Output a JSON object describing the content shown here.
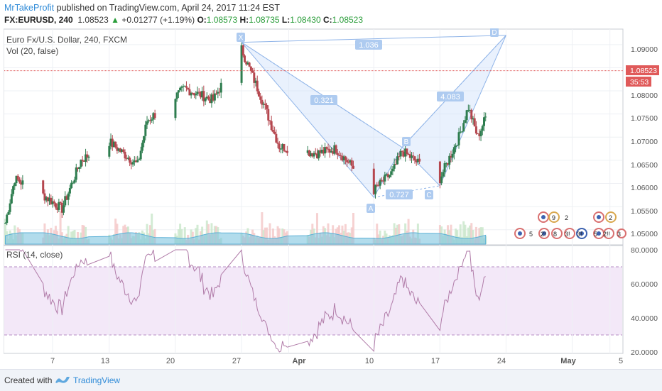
{
  "header": {
    "author": "MrTakeProfit",
    "published": " published on TradingView.com, April 24, 2017 11:24 EST",
    "symbol": "FX:EURUSD, 240",
    "last": "1.08523",
    "change": "+0.01277 (+1.19%)",
    "o_label": "O:",
    "o_value": "1.08573",
    "h_label": "H:",
    "h_value": "1.08735",
    "l_label": "L:",
    "l_value": "1.08430",
    "c_label": "C:",
    "c_value": "1.08523"
  },
  "legend": {
    "title": "Euro Fx/U.S. Dollar, 240, FXCM",
    "vol": "Vol (20, false)",
    "rsi": "RSI (14, close)"
  },
  "price_axis": {
    "ticks": [
      "1.09000",
      "1.08500",
      "1.08000",
      "1.07500",
      "1.07000",
      "1.06500",
      "1.06000",
      "1.05500",
      "1.05000"
    ],
    "last_price_label": "1.08523",
    "countdown_label": "35:53"
  },
  "rsi_axis": {
    "ticks": [
      "80.0000",
      "60.0000",
      "40.0000",
      "20.0000"
    ]
  },
  "time_axis": {
    "ticks": [
      "7",
      "13",
      "20",
      "27",
      "Apr",
      "10",
      "17",
      "24",
      "May",
      "5"
    ]
  },
  "pattern_labels": {
    "X": "X",
    "A": "A",
    "B": "B",
    "C": "C",
    "D": "D",
    "xb": "0.321",
    "ac": "0.727",
    "xd": "1.036",
    "bd": "4.083"
  },
  "events": {
    "e1": "5",
    "e2": "2!",
    "e3": "9",
    "e4": "2",
    "e5": "8",
    "e6": "3!",
    "e7": "3!",
    "e8": "5",
    "e9": "2!!",
    "e10": "2",
    "e11": "3"
  },
  "footer": {
    "created": "Created with",
    "brand": "TradingView"
  },
  "colors": {
    "up": "#2e7d4f",
    "down": "#b5474f",
    "pattern": "#8fb4e8",
    "rsi": "#b07ba8",
    "last_price": "#e05a5a"
  },
  "chart_data": {
    "type": "candlestick",
    "symbol": "FX:EURUSD",
    "timeframe": "240",
    "ohlc_last": {
      "open": 1.08573,
      "high": 1.08735,
      "low": 1.0843,
      "close": 1.08523
    },
    "price_range": [
      1.0475,
      1.0935
    ],
    "rsi_range": [
      20,
      80
    ],
    "harmonic_pattern": {
      "points": [
        {
          "name": "X",
          "date": "Mar 27",
          "price": 1.0905
        },
        {
          "name": "A",
          "date": "Apr 10",
          "price": 1.057
        },
        {
          "name": "B",
          "date": "Apr 13",
          "price": 1.0678
        },
        {
          "name": "C",
          "date": "Apr 17",
          "price": 1.0595
        },
        {
          "name": "D",
          "date": "Apr 24",
          "price": 1.092
        }
      ],
      "ratios": {
        "XB": 0.321,
        "AC": 0.727,
        "XD": 1.036,
        "BD": 4.083
      }
    },
    "path_anchors": [
      {
        "date": "Mar 2",
        "close": 1.0515
      },
      {
        "date": "Mar 3",
        "close": 1.061
      },
      {
        "date": "Mar 6",
        "close": 1.0575
      },
      {
        "date": "Mar 8",
        "close": 1.0545
      },
      {
        "date": "Mar 10",
        "close": 1.065
      },
      {
        "date": "Mar 13",
        "close": 1.069
      },
      {
        "date": "Mar 16",
        "close": 1.064
      },
      {
        "date": "Mar 17",
        "close": 1.0735
      },
      {
        "date": "Mar 21",
        "close": 1.0805
      },
      {
        "date": "Mar 24",
        "close": 1.078
      },
      {
        "date": "Mar 27",
        "close": 1.089
      },
      {
        "date": "Mar 29",
        "close": 1.079
      },
      {
        "date": "Mar 31",
        "close": 1.068
      },
      {
        "date": "Apr 4",
        "close": 1.0665
      },
      {
        "date": "Apr 6",
        "close": 1.0675
      },
      {
        "date": "Apr 10",
        "close": 1.0585
      },
      {
        "date": "Apr 12",
        "close": 1.0625
      },
      {
        "date": "Apr 13",
        "close": 1.067
      },
      {
        "date": "Apr 17",
        "close": 1.061
      },
      {
        "date": "Apr 19",
        "close": 1.07
      },
      {
        "date": "Apr 20",
        "close": 1.0765
      },
      {
        "date": "Apr 21",
        "close": 1.07
      },
      {
        "date": "Apr 24",
        "close": 1.0852
      }
    ]
  }
}
